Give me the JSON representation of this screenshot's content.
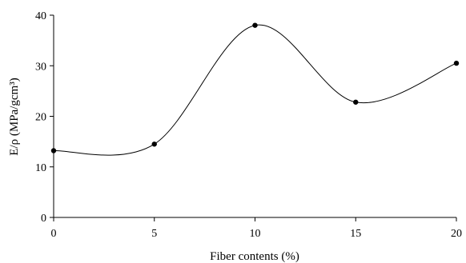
{
  "chart_data": {
    "type": "line",
    "smoothed": true,
    "x": [
      0,
      5,
      10,
      15,
      20
    ],
    "series": [
      {
        "values": [
          13.2,
          14.5,
          38.0,
          22.8,
          30.5
        ]
      }
    ],
    "xlabel": "Fiber contents (%)",
    "ylabel": "E/ρ (MPa/gcm³)",
    "xticks": [
      "0",
      "5",
      "10",
      "15",
      "20"
    ],
    "yticks": [
      "0",
      "10",
      "20",
      "30",
      "40"
    ],
    "xlim": [
      0,
      20
    ],
    "ylim": [
      0,
      40
    ],
    "grid": false,
    "legend": "none",
    "line_color": "#000000",
    "marker_color": "#000000"
  }
}
